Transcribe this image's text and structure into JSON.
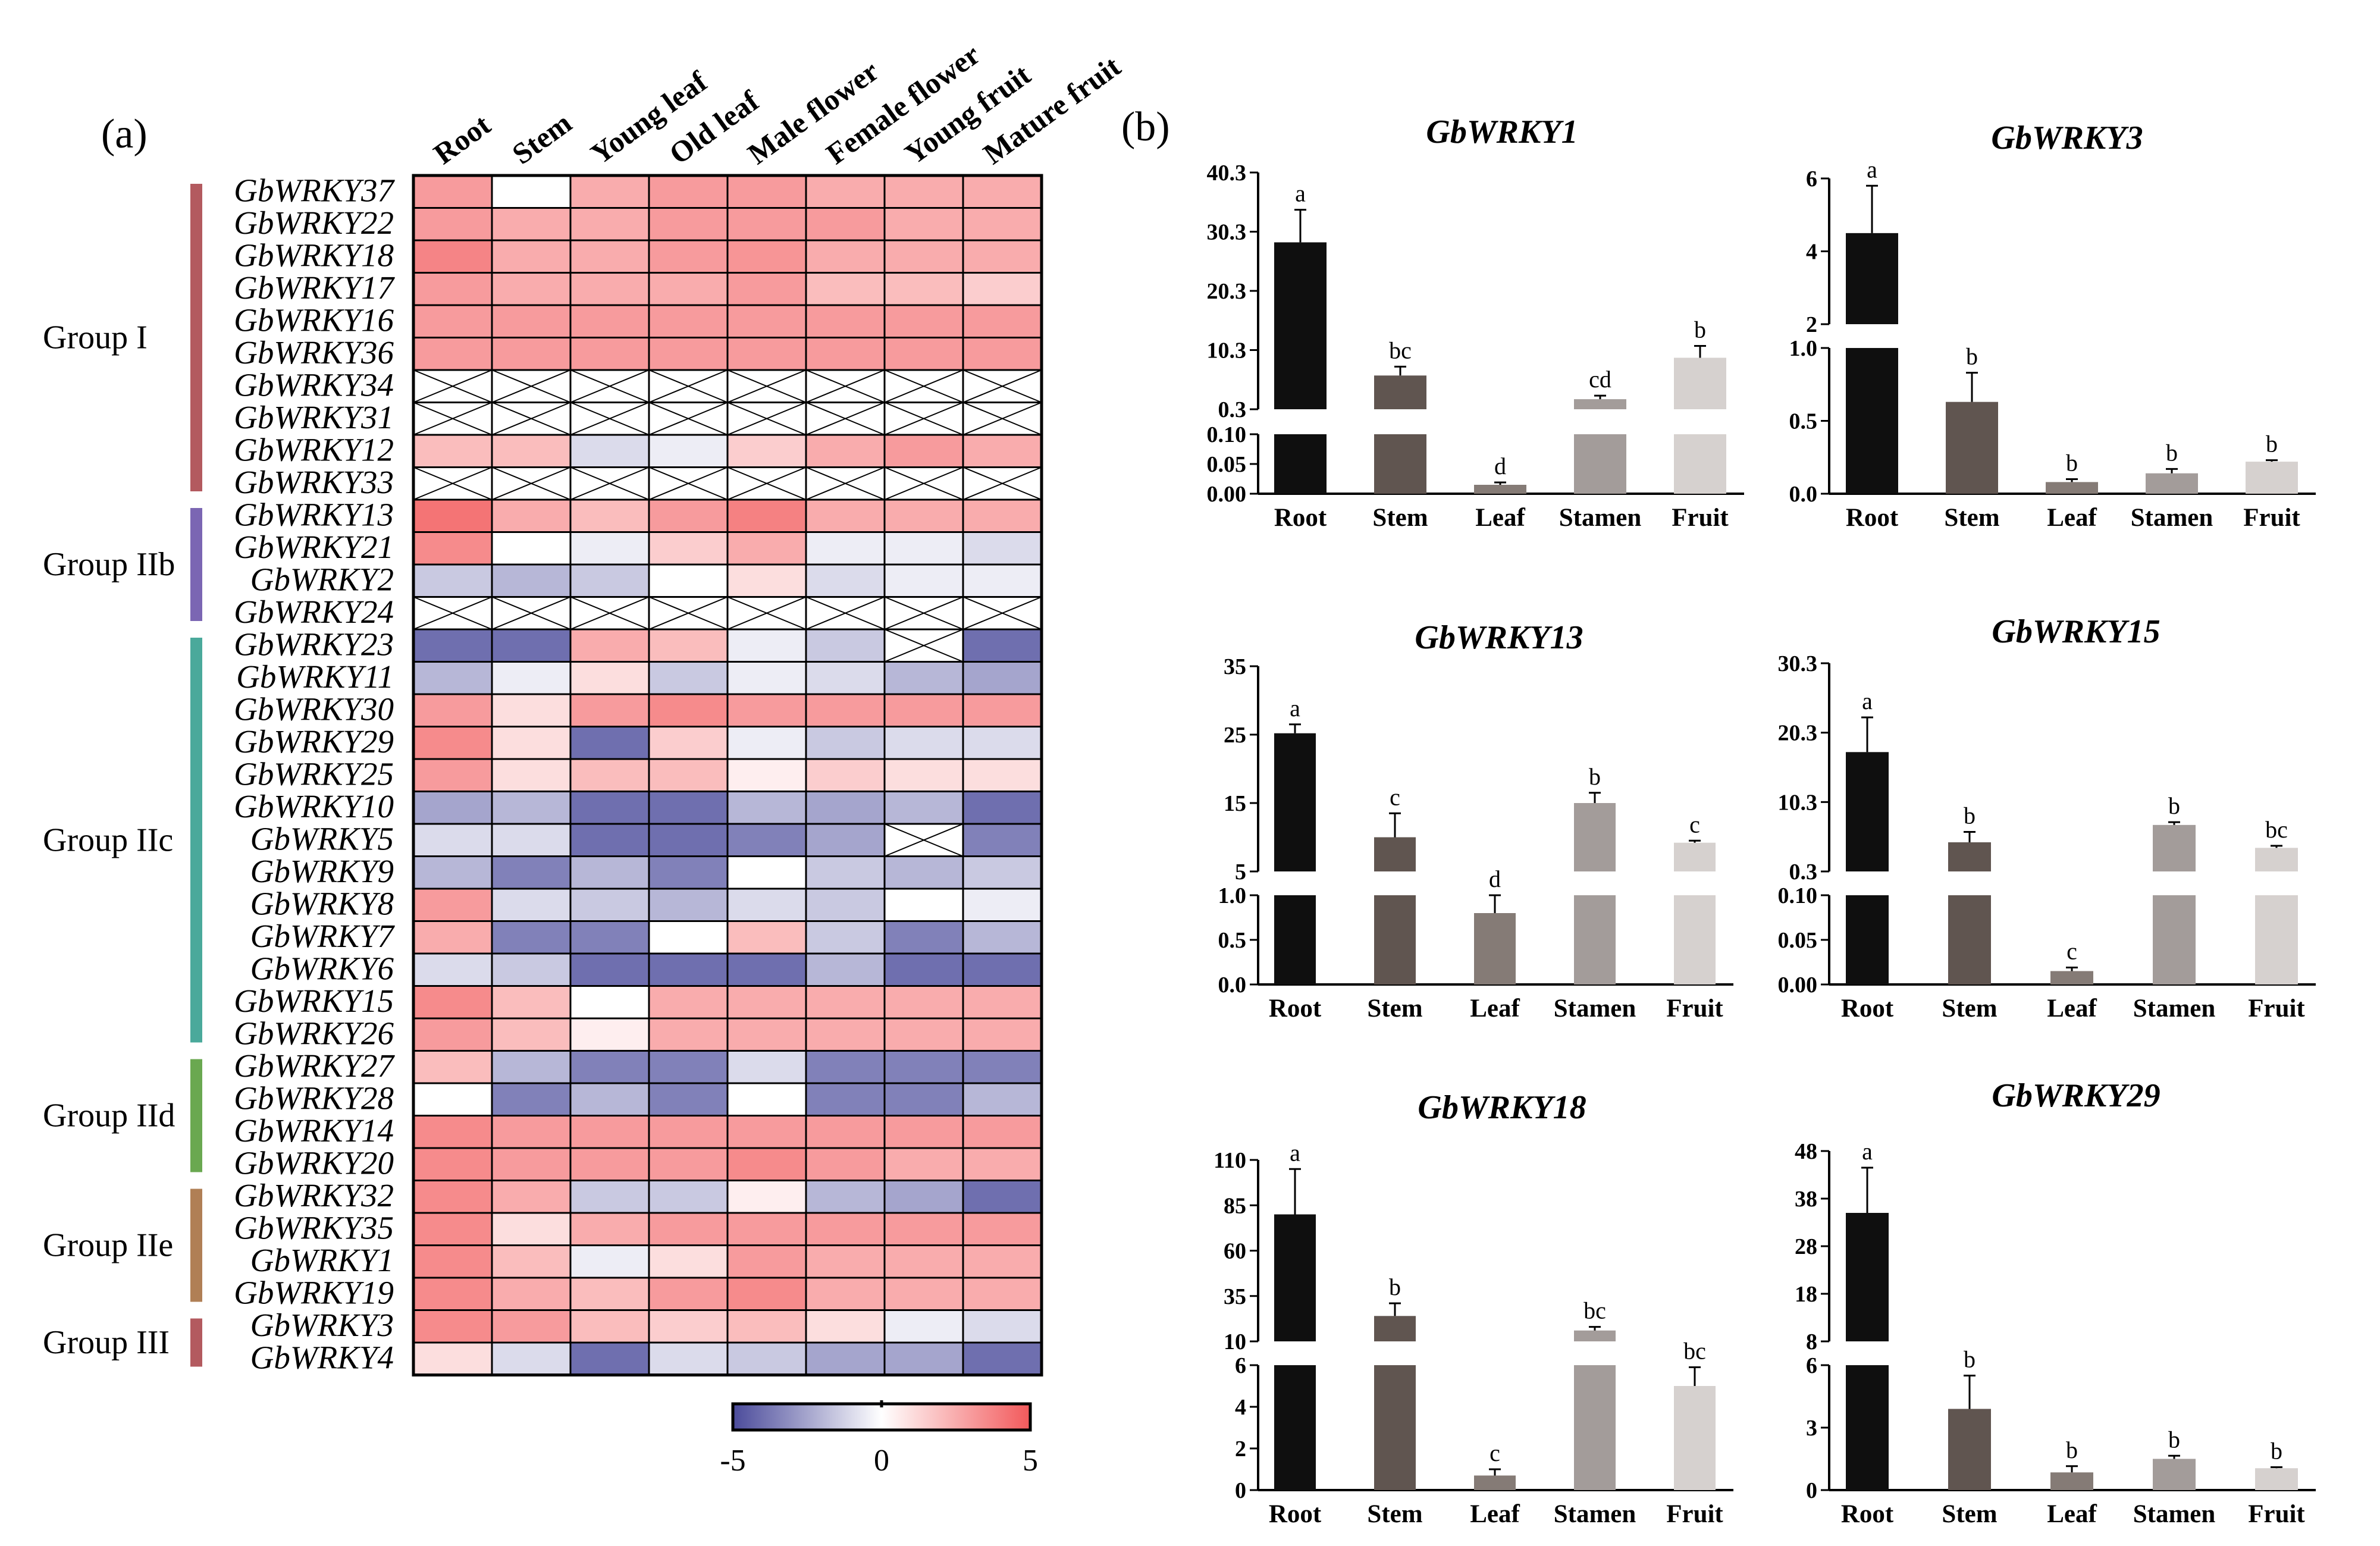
{
  "panel_labels": {
    "heatmap": "(a)",
    "bars": "(b)"
  },
  "chart_data": [
    {
      "type": "heatmap",
      "title": "",
      "columns": [
        "Root",
        "Stem",
        "Young leaf",
        "Old leaf",
        "Male flower",
        "Female flower",
        "Young fruit",
        "Mature fruit"
      ],
      "rows": [
        "GbWRKY37",
        "GbWRKY22",
        "GbWRKY18",
        "GbWRKY17",
        "GbWRKY16",
        "GbWRKY36",
        "GbWRKY34",
        "GbWRKY31",
        "GbWRKY12",
        "GbWRKY33",
        "GbWRKY13",
        "GbWRKY21",
        "GbWRKY2",
        "GbWRKY24",
        "GbWRKY23",
        "GbWRKY11",
        "GbWRKY30",
        "GbWRKY29",
        "GbWRKY25",
        "GbWRKY10",
        "GbWRKY5",
        "GbWRKY9",
        "GbWRKY8",
        "GbWRKY7",
        "GbWRKY6",
        "GbWRKY15",
        "GbWRKY26",
        "GbWRKY27",
        "GbWRKY28",
        "GbWRKY14",
        "GbWRKY20",
        "GbWRKY32",
        "GbWRKY35",
        "GbWRKY1",
        "GbWRKY19",
        "GbWRKY3",
        "GbWRKY4"
      ],
      "groups": [
        {
          "name": "Group I",
          "first_row": 0,
          "last_row": 9,
          "color": "#b35a5f"
        },
        {
          "name": "Group IIb",
          "first_row": 10,
          "last_row": 13,
          "color": "#7b66b3"
        },
        {
          "name": "Group IIc",
          "first_row": 14,
          "last_row": 26,
          "color": "#4aa99b"
        },
        {
          "name": "Group IId",
          "first_row": 27,
          "last_row": 30,
          "color": "#6aa850"
        },
        {
          "name": "Group IIe",
          "first_row": 31,
          "last_row": 34,
          "color": "#b07f55"
        },
        {
          "name": "Group III",
          "first_row": 35,
          "last_row": 36,
          "color": "#b35a5f"
        }
      ],
      "values": [
        [
          3,
          0,
          2.5,
          3,
          3,
          2.5,
          2.5,
          2.5
        ],
        [
          3,
          2.5,
          2.5,
          3,
          3,
          3,
          2.5,
          2.5
        ],
        [
          3.7,
          2.5,
          2.5,
          3,
          3.2,
          2.5,
          2.5,
          2.5
        ],
        [
          3,
          2.5,
          2.5,
          2.5,
          3,
          2,
          2,
          1.5
        ],
        [
          3,
          3,
          3,
          3,
          3,
          3,
          3,
          3
        ],
        [
          3,
          3,
          3,
          3,
          3,
          3,
          3,
          3
        ],
        [
          null,
          null,
          null,
          null,
          null,
          null,
          null,
          null
        ],
        [
          null,
          null,
          null,
          null,
          null,
          null,
          null,
          null
        ],
        [
          2,
          2,
          -1,
          -0.5,
          1.5,
          2.5,
          3,
          2.5
        ],
        [
          null,
          null,
          null,
          null,
          null,
          null,
          null,
          null
        ],
        [
          4.2,
          2.5,
          2,
          3,
          3.8,
          2.5,
          2.5,
          2.5
        ],
        [
          3.5,
          0,
          -0.5,
          1.5,
          2.5,
          -0.5,
          -0.5,
          -1
        ],
        [
          -1.5,
          -2,
          -1.5,
          0,
          1,
          -1,
          -0.5,
          -0.5
        ],
        [
          null,
          null,
          null,
          null,
          null,
          null,
          null,
          null
        ],
        [
          -4,
          -4,
          2.5,
          2,
          -0.5,
          -1.5,
          null,
          -4
        ],
        [
          -2,
          -0.5,
          1,
          -1.5,
          -0.5,
          -1,
          -2,
          -2.5
        ],
        [
          3,
          1,
          3,
          3.5,
          3,
          3,
          3,
          3
        ],
        [
          3.5,
          1,
          -4,
          1.5,
          -0.5,
          -1.5,
          -1,
          -1
        ],
        [
          3,
          1,
          2,
          2,
          0.5,
          1.5,
          1,
          1
        ],
        [
          -2.5,
          -2,
          -4,
          -4,
          -2,
          -2.5,
          -2,
          -4
        ],
        [
          -1,
          -1,
          -4,
          -4,
          -3.5,
          -2.5,
          null,
          -3.5
        ],
        [
          -2,
          -3.5,
          -2,
          -3.5,
          0,
          -1.5,
          -2,
          -1.5
        ],
        [
          3,
          -1,
          -1.5,
          -2,
          -1,
          -1.5,
          0,
          -0.5
        ],
        [
          2.5,
          -3.5,
          -3.5,
          0,
          2,
          -1.5,
          -3.5,
          -2
        ],
        [
          -1,
          -1.5,
          -4,
          -4,
          -4,
          -2,
          -4,
          -4
        ],
        [
          3.5,
          2,
          0,
          2.5,
          2.5,
          2.5,
          2.5,
          2.5
        ],
        [
          3,
          2,
          0.5,
          2.5,
          2.5,
          2.5,
          2.5,
          2.5
        ],
        [
          2,
          -2,
          -3.5,
          -3.5,
          -1,
          -3.5,
          -3.5,
          -3.5
        ],
        [
          0,
          -3.5,
          -2,
          -3.5,
          0,
          -3.5,
          -3.5,
          -2
        ],
        [
          3.5,
          3,
          3,
          3,
          3,
          3,
          3,
          3
        ],
        [
          3.5,
          3,
          3,
          3,
          3.5,
          3,
          2.5,
          2.5
        ],
        [
          3.5,
          2.5,
          -1.5,
          -1.5,
          0.5,
          -2,
          -2.5,
          -4
        ],
        [
          3.5,
          1,
          2.5,
          3,
          3,
          3,
          3,
          3
        ],
        [
          3.5,
          2,
          -0.5,
          1,
          3,
          2.5,
          2.5,
          2.5
        ],
        [
          3.5,
          2.5,
          2,
          3,
          3.5,
          2.5,
          2.5,
          2.5
        ],
        [
          3.5,
          3,
          2,
          1.5,
          2,
          1,
          -0.5,
          -1
        ],
        [
          1,
          -1,
          -4,
          -1,
          -1.5,
          -2.5,
          -2.5,
          -4
        ]
      ],
      "colorbar": {
        "min": -5,
        "max": 5,
        "tick_labels": [
          "-5",
          "0",
          "5"
        ],
        "low_color": "#4b4b9b",
        "mid_color": "#ffffff",
        "high_color": "#f2595b"
      }
    },
    {
      "type": "bar",
      "title": "GbWRKY1",
      "categories": [
        "Root",
        "Stem",
        "Leaf",
        "Stamen",
        "Fruit"
      ],
      "values": [
        28.5,
        6.0,
        0.015,
        2.0,
        9.0
      ],
      "errors": [
        5.5,
        1.5,
        0.004,
        0.6,
        2.0
      ],
      "labels": [
        "a",
        "bc",
        "d",
        "cd",
        "b"
      ],
      "broken_axis": {
        "lower": [
          0,
          0.1
        ],
        "upper": [
          0.3,
          40.3
        ]
      },
      "lower_ticks": [
        "0.00",
        "0.05",
        "0.10"
      ],
      "upper_ticks": [
        "0.3",
        "10.3",
        "20.3",
        "30.3",
        "40.3"
      ],
      "bar_colors": [
        "#0f0f0f",
        "#605550",
        "#857b76",
        "#a39c9a",
        "#d6d1cf"
      ],
      "bold_x": true
    },
    {
      "type": "bar",
      "title": "GbWRKY3",
      "categories": [
        "Root",
        "Stem",
        "Leaf",
        "Stamen",
        "Fruit"
      ],
      "values": [
        4.5,
        0.63,
        0.08,
        0.14,
        0.22
      ],
      "errors": [
        1.3,
        0.2,
        0.02,
        0.03,
        0.01
      ],
      "labels": [
        "a",
        "b",
        "b",
        "b",
        "b"
      ],
      "broken_axis": {
        "lower": [
          0,
          1.0
        ],
        "upper": [
          2,
          6
        ]
      },
      "lower_ticks": [
        "0.0",
        "0.5",
        "1.0"
      ],
      "upper_ticks": [
        "2",
        "4",
        "6"
      ],
      "bar_colors": [
        "#0f0f0f",
        "#605550",
        "#857b76",
        "#a39c9a",
        "#d6d1cf"
      ],
      "bold_x": true
    },
    {
      "type": "bar",
      "title": "GbWRKY13",
      "categories": [
        "Root",
        "Stem",
        "Leaf",
        "Stamen",
        "Fruit"
      ],
      "values": [
        25.2,
        10.0,
        0.8,
        15.0,
        9.2
      ],
      "errors": [
        1.3,
        3.5,
        0.2,
        1.5,
        0.3
      ],
      "labels": [
        "a",
        "c",
        "d",
        "b",
        "c"
      ],
      "broken_axis": {
        "lower": [
          0,
          1.0
        ],
        "upper": [
          5,
          35
        ]
      },
      "lower_ticks": [
        "0.0",
        "0.5",
        "1.0"
      ],
      "upper_ticks": [
        "5",
        "15",
        "25",
        "35"
      ],
      "bar_colors": [
        "#0f0f0f",
        "#605550",
        "#857b76",
        "#a39c9a",
        "#d6d1cf"
      ],
      "bold_x": true
    },
    {
      "type": "bar",
      "title": "GbWRKY15",
      "categories": [
        "Root",
        "Stem",
        "Leaf",
        "Stamen",
        "Fruit"
      ],
      "values": [
        17.5,
        4.5,
        0.015,
        7.0,
        3.7
      ],
      "errors": [
        5.0,
        1.5,
        0.004,
        0.4,
        0.3
      ],
      "labels": [
        "a",
        "b",
        "c",
        "b",
        "bc"
      ],
      "broken_axis": {
        "lower": [
          0,
          0.1
        ],
        "upper": [
          0.3,
          30.3
        ]
      },
      "lower_ticks": [
        "0.00",
        "0.05",
        "0.10"
      ],
      "upper_ticks": [
        "0.3",
        "10.3",
        "20.3",
        "30.3"
      ],
      "bar_colors": [
        "#0f0f0f",
        "#605550",
        "#857b76",
        "#a39c9a",
        "#d6d1cf"
      ],
      "bold_x": false
    },
    {
      "type": "bar",
      "title": "GbWRKY18",
      "categories": [
        "Root",
        "Stem",
        "Leaf",
        "Stamen",
        "Fruit"
      ],
      "values": [
        80,
        24,
        0.7,
        16,
        5.0
      ],
      "errors": [
        25,
        7,
        0.3,
        2,
        0.9
      ],
      "labels": [
        "a",
        "b",
        "c",
        "bc",
        "bc"
      ],
      "broken_axis": {
        "lower": [
          0,
          6
        ],
        "upper": [
          10,
          110
        ]
      },
      "lower_ticks": [
        "0",
        "2",
        "4",
        "6"
      ],
      "upper_ticks": [
        "10",
        "35",
        "60",
        "85",
        "110"
      ],
      "bar_colors": [
        "#0f0f0f",
        "#605550",
        "#857b76",
        "#a39c9a",
        "#d6d1cf"
      ],
      "bold_x": true
    },
    {
      "type": "bar",
      "title": "GbWRKY29",
      "categories": [
        "Root",
        "Stem",
        "Leaf",
        "Stamen",
        "Fruit"
      ],
      "values": [
        35,
        3.9,
        0.85,
        1.5,
        1.05
      ],
      "errors": [
        9.5,
        1.6,
        0.3,
        0.15,
        0.05
      ],
      "labels": [
        "a",
        "b",
        "b",
        "b",
        "b"
      ],
      "broken_axis": {
        "lower": [
          0,
          6
        ],
        "upper": [
          8,
          48
        ]
      },
      "lower_ticks": [
        "0",
        "3",
        "6"
      ],
      "upper_ticks": [
        "8",
        "18",
        "28",
        "38",
        "48"
      ],
      "bar_colors": [
        "#0f0f0f",
        "#605550",
        "#857b76",
        "#a39c9a",
        "#d6d1cf"
      ],
      "bold_x": true
    }
  ]
}
